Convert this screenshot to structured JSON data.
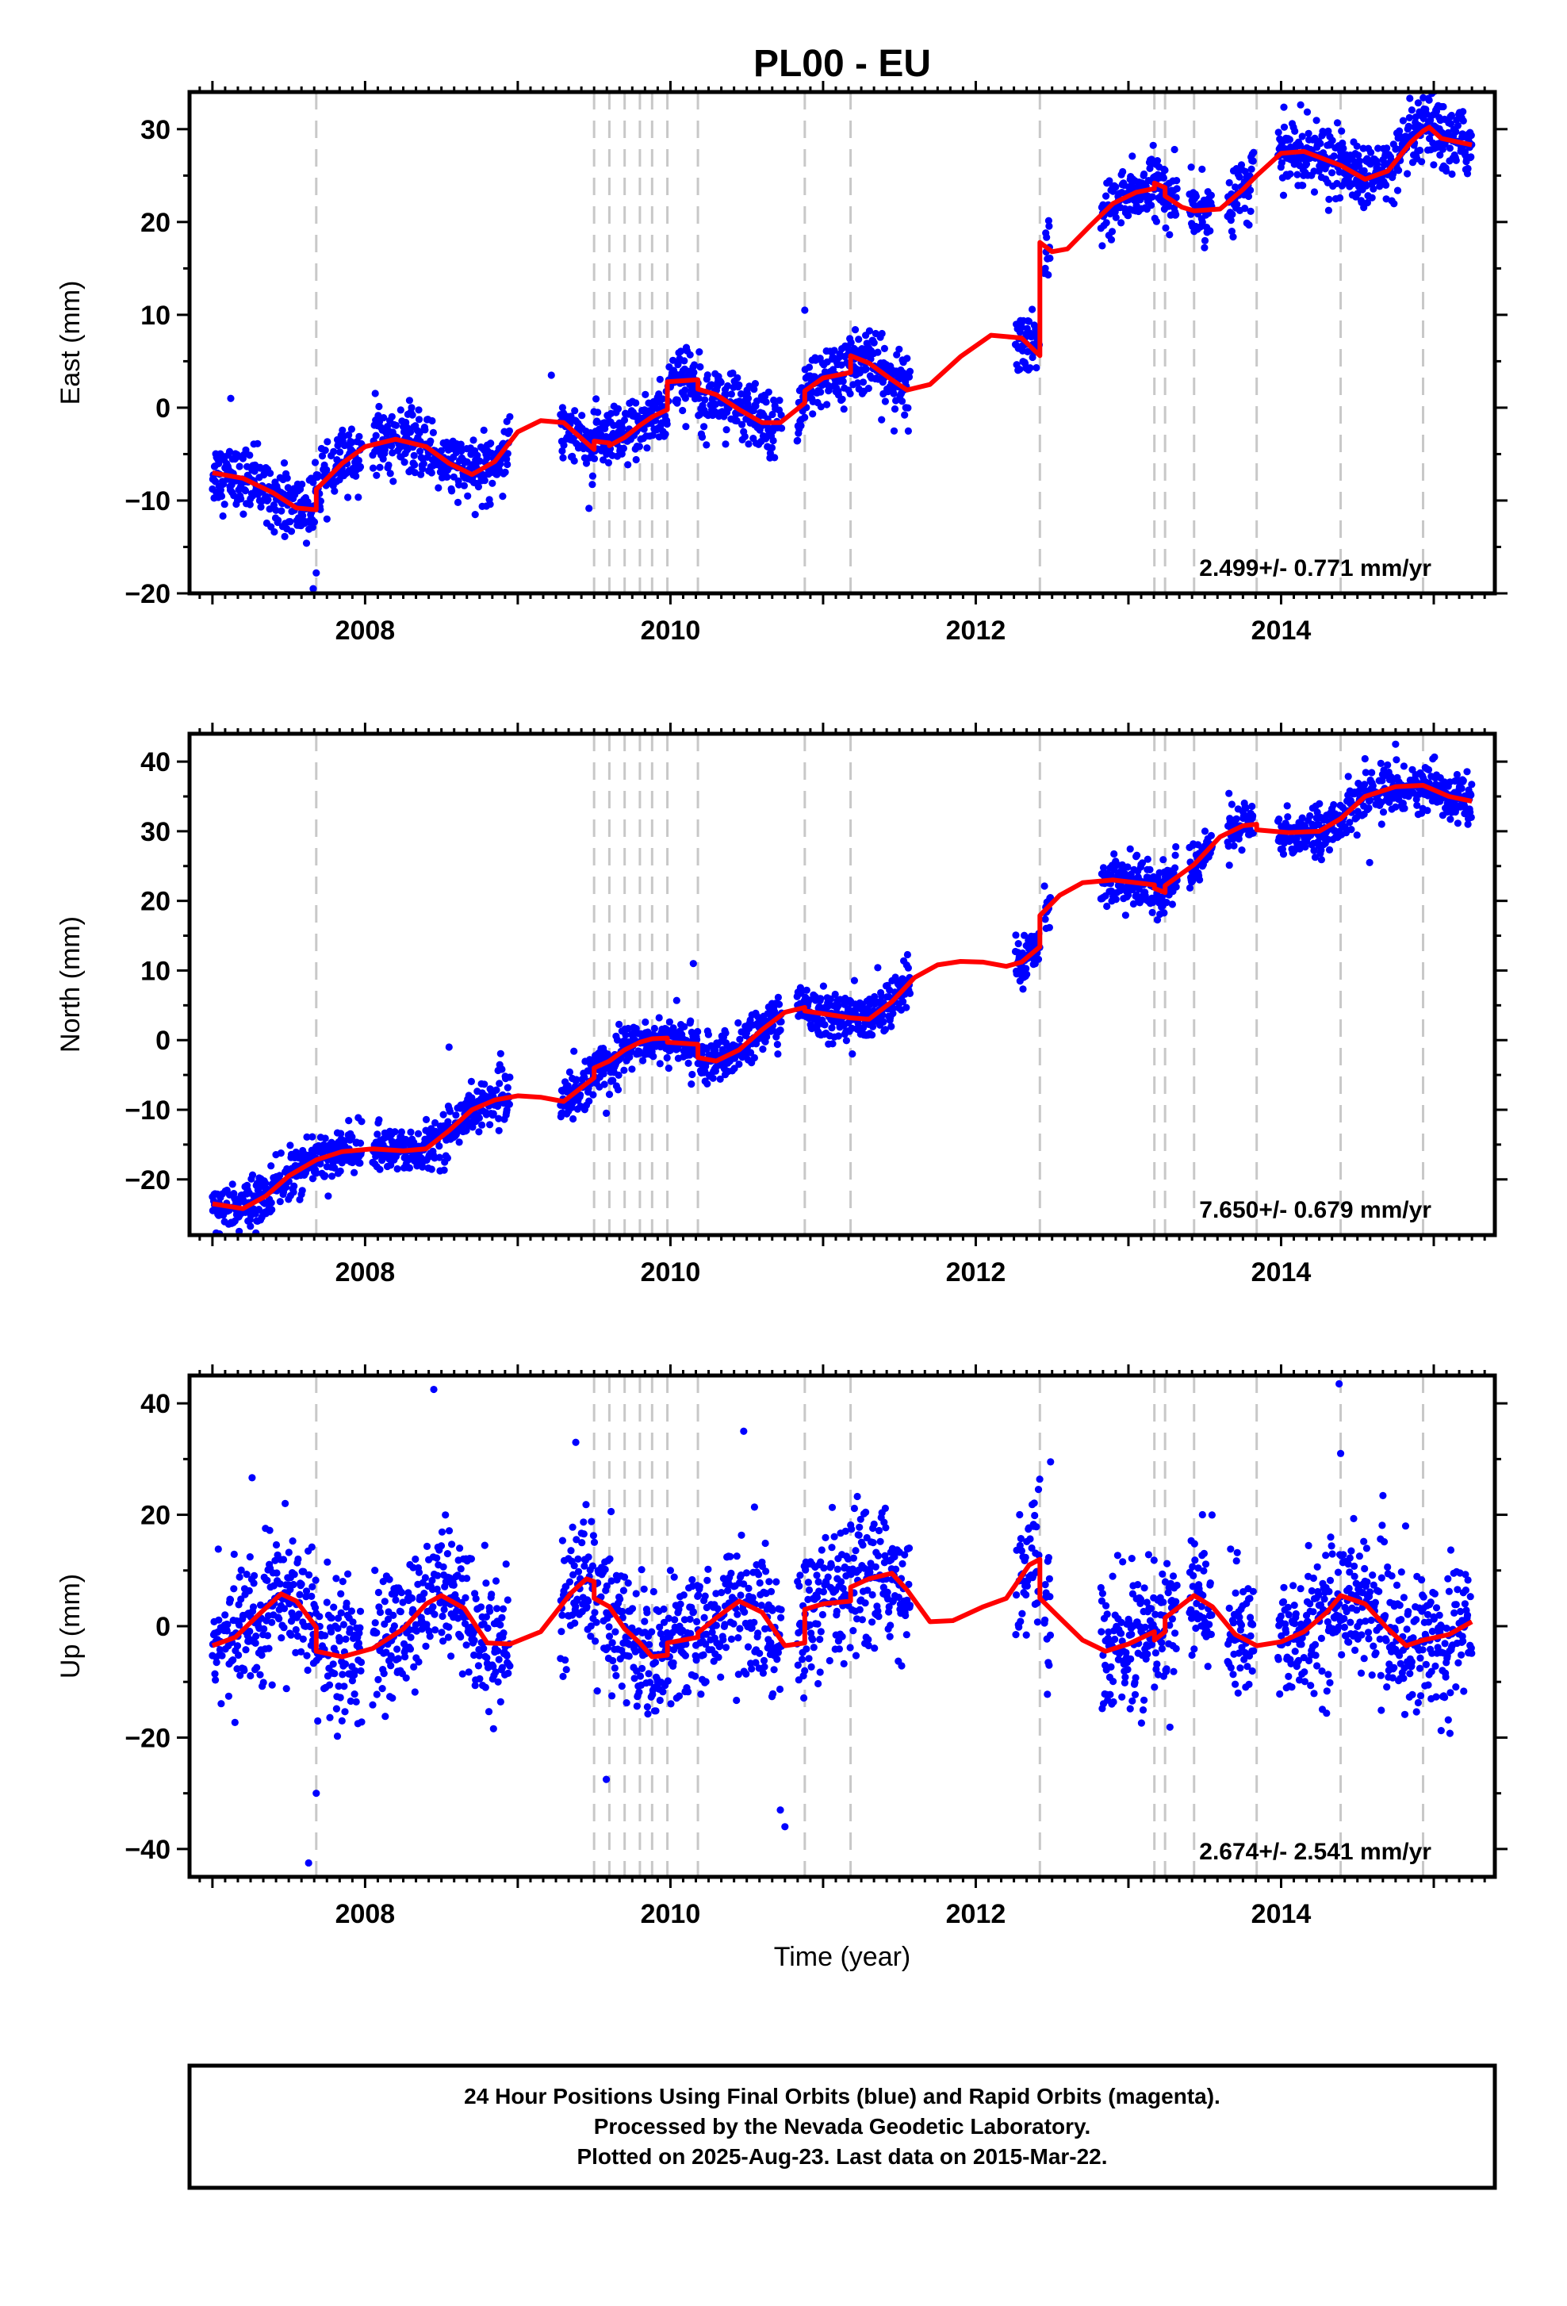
{
  "title": "PL00 - EU",
  "colors": {
    "points": "#0000ff",
    "model": "#ff0000",
    "breaks": "#c8c8c8",
    "frame": "#000000"
  },
  "footer": {
    "line1": "24 Hour Positions Using Final Orbits (blue) and Rapid Orbits (magenta).",
    "line2": "Processed by the Nevada Geodetic Laboratory.",
    "line3": "Plotted on 2025-Aug-23. Last data on 2015-Mar-22."
  },
  "chart_data": [
    {
      "type": "scatter",
      "ylabel": "East (mm)",
      "rate": "2.499+/- 0.771 mm/yr",
      "xlim": [
        2006.85,
        2015.4
      ],
      "ylim": [
        -20,
        34
      ],
      "xticks": [
        "2008",
        "2010",
        "2012",
        "2014"
      ],
      "xtick_values": [
        2008,
        2010,
        2012,
        2014
      ],
      "yticks": [
        -20,
        -10,
        0,
        10,
        20,
        30
      ],
      "yticks_labels": [
        "−20",
        "−10",
        "0",
        "10",
        "20",
        "30"
      ],
      "scatter_sigma": 1.7,
      "break_years": [
        2007.68,
        2009.5,
        2009.6,
        2009.7,
        2009.8,
        2009.88,
        2009.98,
        2010.18,
        2010.88,
        2011.18,
        2012.42,
        2013.17,
        2013.24,
        2013.43,
        2013.84,
        2014.39,
        2014.93
      ],
      "model_line": [
        [
          2007.0,
          -7.0
        ],
        [
          2007.2,
          -7.6
        ],
        [
          2007.4,
          -9.2
        ],
        [
          2007.55,
          -10.8
        ],
        [
          2007.68,
          -11.0
        ],
        [
          2007.68,
          -8.8
        ],
        [
          2007.85,
          -6.0
        ],
        [
          2008.0,
          -4.2
        ],
        [
          2008.2,
          -3.4
        ],
        [
          2008.4,
          -4.2
        ],
        [
          2008.55,
          -6.0
        ],
        [
          2008.7,
          -7.2
        ],
        [
          2008.85,
          -5.8
        ],
        [
          2009.0,
          -2.6
        ],
        [
          2009.15,
          -1.4
        ],
        [
          2009.3,
          -1.6
        ],
        [
          2009.5,
          -4.5
        ],
        [
          2009.5,
          -3.6
        ],
        [
          2009.6,
          -3.8
        ],
        [
          2009.6,
          -4.1
        ],
        [
          2009.7,
          -3.2
        ],
        [
          2009.8,
          -1.9
        ],
        [
          2009.88,
          -1.0
        ],
        [
          2009.98,
          -0.2
        ],
        [
          2009.98,
          2.8
        ],
        [
          2010.18,
          3.0
        ],
        [
          2010.18,
          2.0
        ],
        [
          2010.3,
          1.4
        ],
        [
          2010.45,
          -0.2
        ],
        [
          2010.6,
          -1.6
        ],
        [
          2010.72,
          -1.6
        ],
        [
          2010.88,
          0.5
        ],
        [
          2010.88,
          1.8
        ],
        [
          2011.0,
          3.2
        ],
        [
          2011.18,
          3.8
        ],
        [
          2011.18,
          5.6
        ],
        [
          2011.3,
          4.8
        ],
        [
          2011.45,
          3.0
        ],
        [
          2011.55,
          1.9
        ],
        [
          2011.7,
          2.5
        ],
        [
          2011.9,
          5.5
        ],
        [
          2012.1,
          7.8
        ],
        [
          2012.3,
          7.5
        ],
        [
          2012.42,
          5.6
        ],
        [
          2012.42,
          17.8
        ],
        [
          2012.5,
          16.8
        ],
        [
          2012.6,
          17.1
        ],
        [
          2012.75,
          19.6
        ],
        [
          2012.9,
          22.0
        ],
        [
          2013.05,
          23.2
        ],
        [
          2013.17,
          23.6
        ],
        [
          2013.17,
          24.2
        ],
        [
          2013.24,
          23.7
        ],
        [
          2013.24,
          22.8
        ],
        [
          2013.35,
          21.6
        ],
        [
          2013.43,
          21.2
        ],
        [
          2013.6,
          21.4
        ],
        [
          2013.75,
          23.5
        ],
        [
          2013.84,
          25.0
        ],
        [
          2014.0,
          27.4
        ],
        [
          2014.15,
          27.6
        ],
        [
          2014.39,
          26.1
        ],
        [
          2014.55,
          24.6
        ],
        [
          2014.7,
          25.5
        ],
        [
          2014.85,
          28.6
        ],
        [
          2014.93,
          29.8
        ],
        [
          2014.97,
          30.2
        ],
        [
          2015.05,
          29.0
        ],
        [
          2015.25,
          28.3
        ]
      ],
      "data_segments": [
        [
          2007.0,
          2007.98
        ],
        [
          2008.05,
          2008.95
        ],
        [
          2009.28,
          2010.73
        ],
        [
          2010.83,
          2011.57
        ],
        [
          2012.26,
          2012.42
        ],
        [
          2012.45,
          2012.49
        ],
        [
          2012.82,
          2013.32
        ],
        [
          2013.4,
          2013.55
        ],
        [
          2013.65,
          2013.82
        ],
        [
          2013.98,
          2014.72
        ],
        [
          2014.72,
          2015.25
        ]
      ],
      "outliers": [
        [
          2007.66,
          -19.5
        ],
        [
          2007.68,
          -17.8
        ],
        [
          2007.12,
          1.0
        ],
        [
          2009.22,
          3.5
        ],
        [
          2010.88,
          10.5
        ]
      ]
    },
    {
      "type": "scatter",
      "ylabel": "North (mm)",
      "rate": "7.650+/- 0.679 mm/yr",
      "xlim": [
        2006.85,
        2015.4
      ],
      "ylim": [
        -28,
        44
      ],
      "xticks": [
        "2008",
        "2010",
        "2012",
        "2014"
      ],
      "xtick_values": [
        2008,
        2010,
        2012,
        2014
      ],
      "yticks": [
        -20,
        -10,
        0,
        10,
        20,
        30,
        40
      ],
      "yticks_labels": [
        "−20",
        "−10",
        "0",
        "10",
        "20",
        "30",
        "40"
      ],
      "scatter_sigma": 1.7,
      "break_years": [
        2007.68,
        2009.5,
        2009.6,
        2009.7,
        2009.8,
        2009.88,
        2009.98,
        2010.18,
        2010.88,
        2011.18,
        2012.42,
        2013.17,
        2013.24,
        2013.43,
        2013.84,
        2014.39,
        2014.93
      ],
      "model_line": [
        [
          2007.0,
          -23.5
        ],
        [
          2007.2,
          -24.2
        ],
        [
          2007.35,
          -22.4
        ],
        [
          2007.5,
          -19.5
        ],
        [
          2007.68,
          -17.2
        ],
        [
          2007.85,
          -16.0
        ],
        [
          2008.05,
          -15.6
        ],
        [
          2008.25,
          -15.9
        ],
        [
          2008.4,
          -15.6
        ],
        [
          2008.55,
          -13.0
        ],
        [
          2008.7,
          -10.0
        ],
        [
          2008.85,
          -8.6
        ],
        [
          2009.0,
          -8.0
        ],
        [
          2009.15,
          -8.2
        ],
        [
          2009.3,
          -8.8
        ],
        [
          2009.5,
          -5.4
        ],
        [
          2009.5,
          -4.0
        ],
        [
          2009.6,
          -3.0
        ],
        [
          2009.7,
          -1.4
        ],
        [
          2009.8,
          -0.3
        ],
        [
          2009.88,
          0.2
        ],
        [
          2009.98,
          0.3
        ],
        [
          2009.98,
          -0.3
        ],
        [
          2010.18,
          -0.6
        ],
        [
          2010.18,
          -2.5
        ],
        [
          2010.3,
          -3.0
        ],
        [
          2010.45,
          -1.4
        ],
        [
          2010.6,
          1.5
        ],
        [
          2010.75,
          4.0
        ],
        [
          2010.88,
          4.7
        ],
        [
          2010.88,
          4.2
        ],
        [
          2011.18,
          3.2
        ],
        [
          2011.3,
          3.0
        ],
        [
          2011.45,
          5.5
        ],
        [
          2011.6,
          9.0
        ],
        [
          2011.75,
          10.8
        ],
        [
          2011.9,
          11.3
        ],
        [
          2012.05,
          11.2
        ],
        [
          2012.2,
          10.6
        ],
        [
          2012.3,
          11.2
        ],
        [
          2012.42,
          13.4
        ],
        [
          2012.42,
          17.9
        ],
        [
          2012.55,
          20.8
        ],
        [
          2012.7,
          22.6
        ],
        [
          2012.9,
          23.0
        ],
        [
          2013.17,
          22.3
        ],
        [
          2013.17,
          21.8
        ],
        [
          2013.24,
          21.2
        ],
        [
          2013.24,
          22.2
        ],
        [
          2013.43,
          25.2
        ],
        [
          2013.6,
          29.2
        ],
        [
          2013.75,
          30.8
        ],
        [
          2013.84,
          31.0
        ],
        [
          2013.84,
          30.2
        ],
        [
          2014.05,
          29.8
        ],
        [
          2014.25,
          30.0
        ],
        [
          2014.39,
          31.8
        ],
        [
          2014.55,
          35.0
        ],
        [
          2014.75,
          36.4
        ],
        [
          2014.93,
          36.6
        ],
        [
          2015.1,
          35.0
        ],
        [
          2015.25,
          34.3
        ]
      ],
      "data_segments": [
        [
          2007.0,
          2007.98
        ],
        [
          2008.05,
          2008.95
        ],
        [
          2009.28,
          2010.73
        ],
        [
          2010.83,
          2011.57
        ],
        [
          2012.26,
          2012.42
        ],
        [
          2012.45,
          2012.49
        ],
        [
          2012.82,
          2013.32
        ],
        [
          2013.4,
          2013.55
        ],
        [
          2013.65,
          2013.82
        ],
        [
          2013.98,
          2014.72
        ],
        [
          2014.72,
          2015.25
        ]
      ],
      "outliers": [
        [
          2008.55,
          -1.0
        ],
        [
          2009.58,
          -10.5
        ],
        [
          2010.15,
          11.0
        ],
        [
          2014.58,
          25.5
        ],
        [
          2014.75,
          42.5
        ]
      ]
    },
    {
      "type": "scatter",
      "ylabel": "Up (mm)",
      "xlabel": "Time (year)",
      "rate": "2.674+/- 2.541 mm/yr",
      "xlim": [
        2006.85,
        2015.4
      ],
      "ylim": [
        -45,
        45
      ],
      "xticks": [
        "2008",
        "2010",
        "2012",
        "2014"
      ],
      "xtick_values": [
        2008,
        2010,
        2012,
        2014
      ],
      "yticks": [
        -40,
        -20,
        0,
        20,
        40
      ],
      "yticks_labels": [
        "−40",
        "−20",
        "0",
        "20",
        "40"
      ],
      "scatter_sigma": 6.0,
      "break_years": [
        2007.68,
        2009.5,
        2009.6,
        2009.7,
        2009.8,
        2009.88,
        2009.98,
        2010.18,
        2010.88,
        2011.18,
        2012.42,
        2013.17,
        2013.24,
        2013.43,
        2013.84,
        2014.39,
        2014.93
      ],
      "model_line": [
        [
          2007.0,
          -3.5
        ],
        [
          2007.15,
          -2.0
        ],
        [
          2007.3,
          2.0
        ],
        [
          2007.45,
          5.8
        ],
        [
          2007.55,
          4.5
        ],
        [
          2007.68,
          -0.2
        ],
        [
          2007.68,
          -4.5
        ],
        [
          2007.85,
          -5.5
        ],
        [
          2008.05,
          -4.0
        ],
        [
          2008.25,
          -0.5
        ],
        [
          2008.4,
          4.0
        ],
        [
          2008.5,
          5.5
        ],
        [
          2008.65,
          3.2
        ],
        [
          2008.8,
          -3.0
        ],
        [
          2008.95,
          -3.2
        ],
        [
          2009.15,
          -1.0
        ],
        [
          2009.35,
          6.0
        ],
        [
          2009.45,
          8.5
        ],
        [
          2009.5,
          8.0
        ],
        [
          2009.5,
          5.0
        ],
        [
          2009.6,
          3.5
        ],
        [
          2009.7,
          -0.5
        ],
        [
          2009.8,
          -3.0
        ],
        [
          2009.88,
          -5.5
        ],
        [
          2009.98,
          -5.2
        ],
        [
          2009.98,
          -3.0
        ],
        [
          2010.18,
          -2.0
        ],
        [
          2010.18,
          -1.2
        ],
        [
          2010.3,
          1.5
        ],
        [
          2010.45,
          4.5
        ],
        [
          2010.6,
          2.5
        ],
        [
          2010.75,
          -3.5
        ],
        [
          2010.88,
          -3.0
        ],
        [
          2010.88,
          3.0
        ],
        [
          2011.0,
          4.0
        ],
        [
          2011.18,
          4.5
        ],
        [
          2011.18,
          7.0
        ],
        [
          2011.3,
          8.5
        ],
        [
          2011.45,
          9.5
        ],
        [
          2011.55,
          6.5
        ],
        [
          2011.7,
          0.8
        ],
        [
          2011.85,
          1.0
        ],
        [
          2012.05,
          3.5
        ],
        [
          2012.2,
          5.0
        ],
        [
          2012.35,
          11.0
        ],
        [
          2012.42,
          12.0
        ],
        [
          2012.42,
          5.0
        ],
        [
          2012.55,
          1.5
        ],
        [
          2012.7,
          -2.5
        ],
        [
          2012.85,
          -4.5
        ],
        [
          2013.0,
          -3.2
        ],
        [
          2013.17,
          -1.0
        ],
        [
          2013.17,
          -2.5
        ],
        [
          2013.24,
          -1.0
        ],
        [
          2013.24,
          1.5
        ],
        [
          2013.43,
          5.5
        ],
        [
          2013.55,
          3.5
        ],
        [
          2013.7,
          -1.5
        ],
        [
          2013.84,
          -3.5
        ],
        [
          2014.0,
          -2.8
        ],
        [
          2014.15,
          -1.0
        ],
        [
          2014.3,
          2.5
        ],
        [
          2014.39,
          5.5
        ],
        [
          2014.55,
          4.0
        ],
        [
          2014.7,
          -0.5
        ],
        [
          2014.82,
          -3.5
        ],
        [
          2014.93,
          -2.5
        ],
        [
          2015.1,
          -1.5
        ],
        [
          2015.25,
          0.8
        ]
      ],
      "data_segments": [
        [
          2007.0,
          2007.98
        ],
        [
          2008.05,
          2008.95
        ],
        [
          2009.28,
          2010.73
        ],
        [
          2010.83,
          2011.57
        ],
        [
          2012.26,
          2012.42
        ],
        [
          2012.45,
          2012.49
        ],
        [
          2012.82,
          2013.32
        ],
        [
          2013.4,
          2013.55
        ],
        [
          2013.65,
          2013.82
        ],
        [
          2013.98,
          2014.72
        ],
        [
          2014.72,
          2015.25
        ]
      ],
      "outliers": [
        [
          2007.63,
          -42.5
        ],
        [
          2008.45,
          42.5
        ],
        [
          2009.38,
          33.0
        ],
        [
          2010.48,
          35.0
        ],
        [
          2010.75,
          -36.0
        ],
        [
          2012.49,
          29.5
        ],
        [
          2014.38,
          43.5
        ],
        [
          2014.39,
          31.0
        ],
        [
          2007.68,
          -30.0
        ],
        [
          2009.58,
          -27.5
        ],
        [
          2010.72,
          -33.0
        ]
      ]
    }
  ]
}
